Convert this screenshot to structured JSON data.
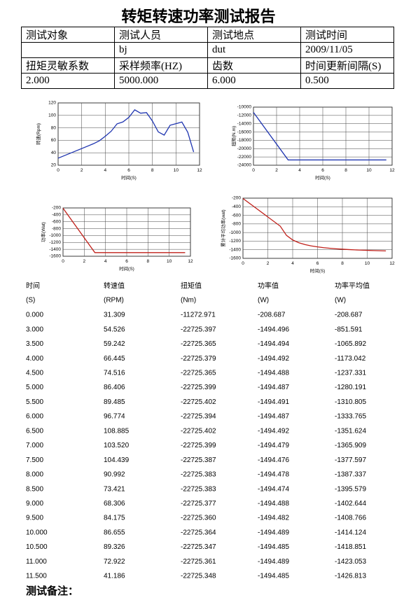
{
  "title": "转矩转速功率测试报告",
  "info_table": {
    "rows": [
      [
        "测试对象",
        "测试人员",
        "测试地点",
        "测试时间"
      ],
      [
        null,
        "bj",
        "dut",
        "2009/11/05"
      ],
      [
        "扭矩灵敏系数",
        "采样频率(HZ)",
        "齿数",
        "时间更新间隔(S)"
      ],
      [
        "2.000",
        "5000.000",
        "6.000",
        "0.500"
      ]
    ]
  },
  "chart_data": [
    {
      "type": "line",
      "ylabel": "转速(Rpm)",
      "xlabel": "时间(S)",
      "color": "#1f35b0",
      "x": [
        0,
        3,
        3.5,
        4,
        4.5,
        5,
        5.5,
        6,
        6.5,
        7,
        7.5,
        8,
        8.5,
        9,
        9.5,
        10,
        10.5,
        11,
        11.5
      ],
      "values": [
        31.309,
        54.526,
        59.242,
        66.445,
        74.516,
        86.406,
        89.485,
        96.774,
        108.885,
        103.52,
        104.439,
        90.992,
        73.421,
        68.306,
        84.175,
        86.655,
        89.326,
        72.922,
        41.186
      ],
      "xlim": [
        0,
        12
      ],
      "ylim": [
        20,
        120
      ],
      "xticks": [
        0,
        2,
        4,
        6,
        8,
        10,
        12
      ],
      "yticks": [
        20,
        40,
        60,
        80,
        100,
        120
      ],
      "grid": true
    },
    {
      "type": "line",
      "ylabel": "扭矩(N.m)",
      "xlabel": "时间(S)",
      "color": "#1f35b0",
      "x": [
        0,
        3,
        3.5,
        4,
        4.5,
        5,
        5.5,
        6,
        6.5,
        7,
        7.5,
        8,
        8.5,
        9,
        9.5,
        10,
        10.5,
        11,
        11.5
      ],
      "values": [
        -11272.971,
        -22725.397,
        -22725.365,
        -22725.379,
        -22725.365,
        -22725.399,
        -22725.402,
        -22725.394,
        -22725.402,
        -22725.399,
        -22725.387,
        -22725.383,
        -22725.383,
        -22725.377,
        -22725.36,
        -22725.364,
        -22725.347,
        -22725.361,
        -22725.348
      ],
      "xlim": [
        0,
        12
      ],
      "ylim": [
        -24000,
        -10000
      ],
      "xticks": [
        0,
        2,
        4,
        6,
        8,
        10,
        12
      ],
      "yticks": [
        -24000,
        -22000,
        -20000,
        -18000,
        -16000,
        -14000,
        -12000,
        -10000
      ],
      "grid": true
    },
    {
      "type": "line",
      "ylabel": "功率(Wat)",
      "xlabel": "时间(S)",
      "color": "#c0201a",
      "x": [
        0,
        3,
        3.5,
        4,
        4.5,
        5,
        5.5,
        6,
        6.5,
        7,
        7.5,
        8,
        8.5,
        9,
        9.5,
        10,
        10.5,
        11,
        11.5
      ],
      "values": [
        -208.687,
        -1494.496,
        -1494.494,
        -1494.492,
        -1494.488,
        -1494.487,
        -1494.491,
        -1494.487,
        -1494.492,
        -1494.479,
        -1494.476,
        -1494.478,
        -1494.474,
        -1494.488,
        -1494.482,
        -1494.489,
        -1494.485,
        -1494.489,
        -1494.485
      ],
      "xlim": [
        0,
        12
      ],
      "ylim": [
        -1600,
        -200
      ],
      "xticks": [
        0,
        2,
        4,
        6,
        8,
        10,
        12
      ],
      "yticks": [
        -1600,
        -1400,
        -1200,
        -1000,
        -800,
        -600,
        -400,
        -200
      ],
      "grid": true
    },
    {
      "type": "line",
      "ylabel": "累计平均功率(wat)",
      "xlabel": "时间(S)",
      "color": "#c0201a",
      "x": [
        0,
        3,
        3.5,
        4,
        4.5,
        5,
        5.5,
        6,
        6.5,
        7,
        7.5,
        8,
        8.5,
        9,
        9.5,
        10,
        10.5,
        11,
        11.5
      ],
      "values": [
        -208.687,
        -851.591,
        -1065.892,
        -1173.042,
        -1237.331,
        -1280.191,
        -1310.805,
        -1333.765,
        -1351.624,
        -1365.909,
        -1377.597,
        -1387.337,
        -1395.579,
        -1402.644,
        -1408.766,
        -1414.124,
        -1418.851,
        -1423.053,
        -1426.813
      ],
      "xlim": [
        0,
        12
      ],
      "ylim": [
        -1600,
        -200
      ],
      "xticks": [
        0,
        2,
        4,
        6,
        8,
        10,
        12
      ],
      "yticks": [
        -1600,
        -1400,
        -1200,
        -1000,
        -800,
        -600,
        -400,
        -200
      ],
      "grid": true
    }
  ],
  "data_table": {
    "header": [
      "时间",
      "转速值",
      "扭矩值",
      "功率值",
      "功率平均值"
    ],
    "units": [
      "(S)",
      "(RPM)",
      "(Nm)",
      "(W)",
      "(W)"
    ],
    "rows": [
      [
        "0.000",
        "31.309",
        "-11272.971",
        "-208.687",
        "-208.687"
      ],
      [
        "3.000",
        "54.526",
        "-22725.397",
        "-1494.496",
        "-851.591"
      ],
      [
        "3.500",
        "59.242",
        "-22725.365",
        "-1494.494",
        "-1065.892"
      ],
      [
        "4.000",
        "66.445",
        "-22725.379",
        "-1494.492",
        "-1173.042"
      ],
      [
        "4.500",
        "74.516",
        "-22725.365",
        "-1494.488",
        "-1237.331"
      ],
      [
        "5.000",
        "86.406",
        "-22725.399",
        "-1494.487",
        "-1280.191"
      ],
      [
        "5.500",
        "89.485",
        "-22725.402",
        "-1494.491",
        "-1310.805"
      ],
      [
        "6.000",
        "96.774",
        "-22725.394",
        "-1494.487",
        "-1333.765"
      ],
      [
        "6.500",
        "108.885",
        "-22725.402",
        "-1494.492",
        "-1351.624"
      ],
      [
        "7.000",
        "103.520",
        "-22725.399",
        "-1494.479",
        "-1365.909"
      ],
      [
        "7.500",
        "104.439",
        "-22725.387",
        "-1494.476",
        "-1377.597"
      ],
      [
        "8.000",
        "90.992",
        "-22725.383",
        "-1494.478",
        "-1387.337"
      ],
      [
        "8.500",
        "73.421",
        "-22725.383",
        "-1494.474",
        "-1395.579"
      ],
      [
        "9.000",
        "68.306",
        "-22725.377",
        "-1494.488",
        "-1402.644"
      ],
      [
        "9.500",
        "84.175",
        "-22725.360",
        "-1494.482",
        "-1408.766"
      ],
      [
        "10.000",
        "86.655",
        "-22725.364",
        "-1494.489",
        "-1414.124"
      ],
      [
        "10.500",
        "89.326",
        "-22725.347",
        "-1494.485",
        "-1418.851"
      ],
      [
        "11.000",
        "72.922",
        "-22725.361",
        "-1494.489",
        "-1423.053"
      ],
      [
        "11.500",
        "41.186",
        "-22725.348",
        "-1494.485",
        "-1426.813"
      ]
    ]
  },
  "remarks": "测试备注："
}
